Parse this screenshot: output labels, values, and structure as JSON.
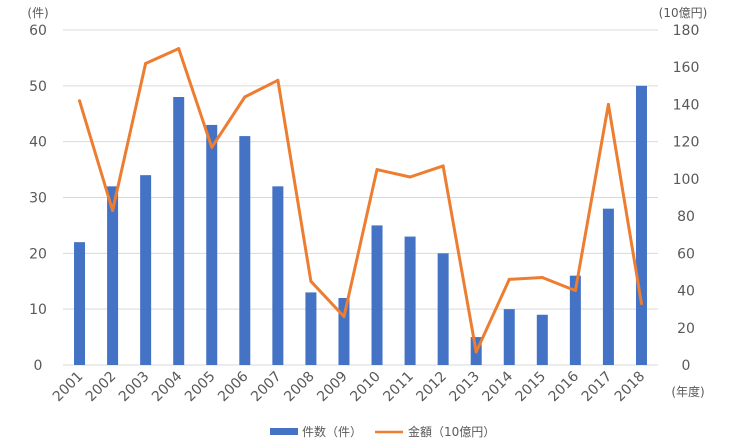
{
  "chart_data": {
    "type": "bar+line",
    "categories": [
      "2001",
      "2002",
      "2003",
      "2004",
      "2005",
      "2006",
      "2007",
      "2008",
      "2009",
      "2010",
      "2011",
      "2012",
      "2013",
      "2014",
      "2015",
      "2016",
      "2017",
      "2018"
    ],
    "series": [
      {
        "name": "件数（件）",
        "type": "bar",
        "axis": "left",
        "color": "#4472C4",
        "values": [
          22,
          32,
          34,
          48,
          43,
          41,
          32,
          13,
          12,
          25,
          23,
          20,
          5,
          10,
          9,
          16,
          28,
          50
        ]
      },
      {
        "name": "金額（10億円）",
        "type": "line",
        "axis": "right",
        "color": "#ED7D31",
        "values": [
          142,
          83,
          162,
          170,
          117,
          144,
          153,
          45,
          26,
          105,
          101,
          107,
          7,
          46,
          47,
          40,
          140,
          33
        ]
      }
    ],
    "y_left": {
      "unit_label": "(件)",
      "min": 0,
      "max": 60,
      "ticks": [
        0,
        10,
        20,
        30,
        40,
        50,
        60
      ]
    },
    "y_right": {
      "unit_label": "(10億円)",
      "min": 0,
      "max": 180,
      "ticks": [
        0,
        20,
        40,
        60,
        80,
        100,
        120,
        140,
        160,
        180
      ]
    },
    "x_unit_label": "(年度)",
    "grid": "horizontal",
    "legend_position": "bottom"
  }
}
